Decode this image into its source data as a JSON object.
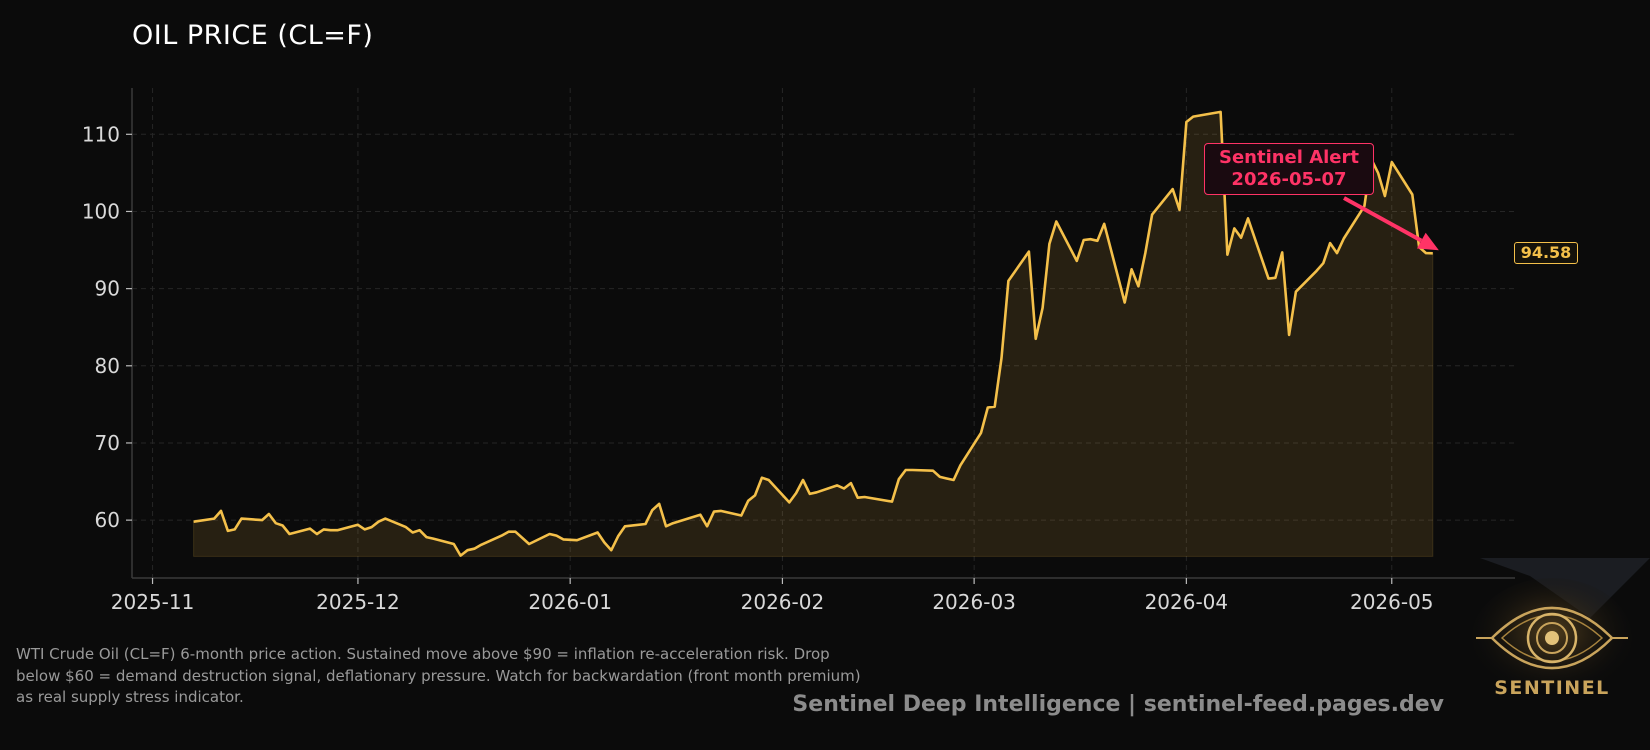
{
  "header": {
    "title": "OIL PRICE (CL=F)"
  },
  "footer": {
    "description": "WTI Crude Oil (CL=F) 6-month price action. Sustained move above $90 = inflation re-acceleration risk. Drop below $60 = demand destruction signal, deflationary pressure. Watch for backwardation (front month premium) as real supply stress indicator.",
    "brand": "Sentinel Deep Intelligence  |  sentinel-feed.pages.dev"
  },
  "logo": {
    "text": "SENTINEL",
    "icon": "eye-icon"
  },
  "colors": {
    "line": "#f4c04a",
    "alert": "#ff3366",
    "background": "#0b0b0b"
  },
  "chart_data": {
    "type": "area",
    "title": "OIL PRICE (CL=F)",
    "xlabel": "",
    "ylabel": "",
    "ylim": [
      52.5,
      116
    ],
    "xlim": [
      "2025-10-29",
      "2026-05-19"
    ],
    "yticks": [
      60,
      70,
      80,
      90,
      100,
      110
    ],
    "xticks": [
      "2025-11-01",
      "2025-12-01",
      "2026-01-01",
      "2026-02-01",
      "2026-03-01",
      "2026-04-01",
      "2026-05-01"
    ],
    "xtick_labels": [
      "2025-11",
      "2025-12",
      "2026-01",
      "2026-02",
      "2026-03",
      "2026-04",
      "2026-05"
    ],
    "grid": true,
    "fill_base": 55.3,
    "series": [
      {
        "x": [
          "2025-11-07",
          "2025-11-10",
          "2025-11-11",
          "2025-11-12",
          "2025-11-13",
          "2025-11-14",
          "2025-11-17",
          "2025-11-18",
          "2025-11-19",
          "2025-11-20",
          "2025-11-21",
          "2025-11-24",
          "2025-11-25",
          "2025-11-26",
          "2025-11-27",
          "2025-11-28",
          "2025-12-01",
          "2025-12-02",
          "2025-12-03",
          "2025-12-04",
          "2025-12-05",
          "2025-12-08",
          "2025-12-09",
          "2025-12-10",
          "2025-12-11",
          "2025-12-12",
          "2025-12-15",
          "2025-12-16",
          "2025-12-17",
          "2025-12-18",
          "2025-12-19",
          "2025-12-22",
          "2025-12-23",
          "2025-12-24",
          "2025-12-26",
          "2025-12-29",
          "2025-12-30",
          "2025-12-31",
          "2026-01-02",
          "2026-01-05",
          "2026-01-06",
          "2026-01-07",
          "2026-01-08",
          "2026-01-09",
          "2026-01-12",
          "2026-01-13",
          "2026-01-14",
          "2026-01-15",
          "2026-01-16",
          "2026-01-20",
          "2026-01-21",
          "2026-01-22",
          "2026-01-23",
          "2026-01-26",
          "2026-01-27",
          "2026-01-28",
          "2026-01-29",
          "2026-01-30",
          "2026-02-02",
          "2026-02-03",
          "2026-02-04",
          "2026-02-05",
          "2026-02-06",
          "2026-02-09",
          "2026-02-10",
          "2026-02-11",
          "2026-02-12",
          "2026-02-13",
          "2026-02-17",
          "2026-02-18",
          "2026-02-19",
          "2026-02-20",
          "2026-02-23",
          "2026-02-24",
          "2026-02-25",
          "2026-02-26",
          "2026-02-27",
          "2026-03-02",
          "2026-03-03",
          "2026-03-04",
          "2026-03-05",
          "2026-03-06",
          "2026-03-09",
          "2026-03-10",
          "2026-03-11",
          "2026-03-12",
          "2026-03-13",
          "2026-03-16",
          "2026-03-17",
          "2026-03-18",
          "2026-03-19",
          "2026-03-20",
          "2026-03-23",
          "2026-03-24",
          "2026-03-25",
          "2026-03-26",
          "2026-03-27",
          "2026-03-30",
          "2026-03-31",
          "2026-04-01",
          "2026-04-02",
          "2026-04-06",
          "2026-04-07",
          "2026-04-08",
          "2026-04-09",
          "2026-04-10",
          "2026-04-13",
          "2026-04-14",
          "2026-04-15",
          "2026-04-16",
          "2026-04-17",
          "2026-04-20",
          "2026-04-21",
          "2026-04-22",
          "2026-04-23",
          "2026-04-24",
          "2026-04-27",
          "2026-04-28",
          "2026-04-29",
          "2026-04-30",
          "2026-05-01",
          "2026-05-04",
          "2026-05-05",
          "2026-05-06",
          "2026-05-07"
        ],
        "values": [
          59.8,
          60.2,
          61.2,
          58.6,
          58.8,
          60.2,
          60.0,
          60.8,
          59.6,
          59.3,
          58.2,
          58.9,
          58.2,
          58.8,
          58.7,
          58.7,
          59.4,
          58.8,
          59.1,
          59.8,
          60.2,
          59.1,
          58.4,
          58.7,
          57.8,
          57.6,
          56.9,
          55.4,
          56.1,
          56.3,
          56.8,
          58.0,
          58.5,
          58.5,
          56.9,
          58.2,
          58.0,
          57.5,
          57.4,
          58.4,
          57.1,
          56.1,
          57.9,
          59.2,
          59.5,
          61.3,
          62.1,
          59.2,
          59.6,
          60.7,
          59.2,
          61.1,
          61.2,
          60.6,
          62.5,
          63.2,
          65.5,
          65.2,
          62.3,
          63.5,
          65.2,
          63.4,
          63.6,
          64.5,
          64.1,
          64.8,
          62.9,
          63.0,
          62.4,
          65.3,
          66.5,
          66.5,
          66.4,
          65.6,
          65.4,
          65.2,
          67.1,
          71.3,
          74.6,
          74.7,
          81.0,
          91.0,
          94.8,
          83.5,
          87.5,
          95.8,
          98.7,
          93.6,
          96.3,
          96.4,
          96.2,
          98.4,
          88.2,
          92.5,
          90.3,
          94.6,
          99.6,
          102.9,
          100.2,
          111.6,
          112.3,
          112.9,
          94.4,
          97.8,
          96.6,
          99.1,
          91.3,
          91.4,
          94.7,
          84.0,
          89.6,
          92.3,
          93.3,
          95.9,
          94.6,
          96.5,
          100.7,
          106.8,
          105.0,
          102.0,
          106.4,
          102.2,
          95.4,
          94.6,
          94.58
        ]
      }
    ],
    "annotations": [
      {
        "text": "Sentinel Alert",
        "subtext": "2026-05-07",
        "x": "2026-05-07",
        "y": 94.58
      },
      {
        "text": "94.58",
        "y": 94.58
      }
    ]
  }
}
